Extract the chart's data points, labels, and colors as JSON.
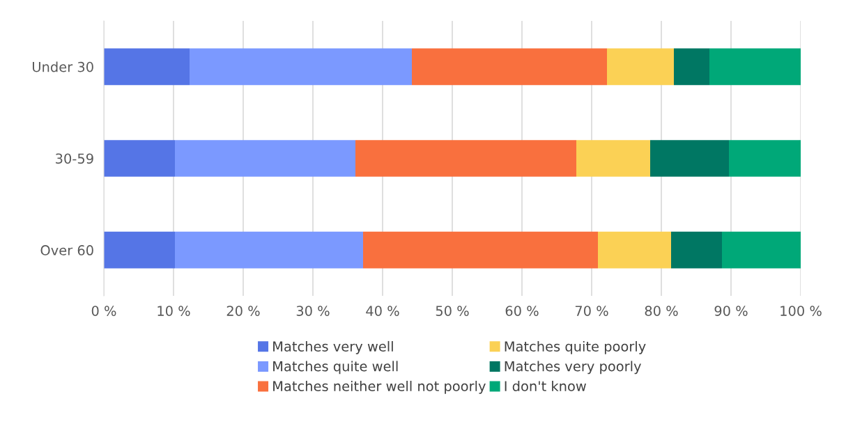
{
  "chart_data": {
    "type": "bar",
    "orientation": "horizontal",
    "stacked": true,
    "categories": [
      "Under 30",
      "30-59",
      "Over 60"
    ],
    "series": [
      {
        "name": "Matches very well",
        "color": "#5575e6",
        "values": [
          12.3,
          10.2,
          10.2
        ]
      },
      {
        "name": "Matches quite well",
        "color": "#7b99ff",
        "values": [
          31.9,
          25.9,
          27.0
        ]
      },
      {
        "name": "Matches neither well not poorly",
        "color": "#f9703e",
        "values": [
          28.0,
          31.7,
          33.7
        ]
      },
      {
        "name": "Matches quite poorly",
        "color": "#fbd155",
        "values": [
          9.6,
          10.6,
          10.5
        ]
      },
      {
        "name": "Matches very poorly",
        "color": "#007763",
        "values": [
          5.1,
          11.3,
          7.3
        ]
      },
      {
        "name": "I don't know",
        "color": "#00a878",
        "values": [
          13.1,
          10.3,
          11.3
        ]
      }
    ],
    "xlim": [
      0,
      100
    ],
    "xticks": [
      {
        "value": 0,
        "label": "0 %"
      },
      {
        "value": 10,
        "label": "10 %"
      },
      {
        "value": 20,
        "label": "20 %"
      },
      {
        "value": 30,
        "label": "30 %"
      },
      {
        "value": 40,
        "label": "40 %"
      },
      {
        "value": 50,
        "label": "50 %"
      },
      {
        "value": 60,
        "label": "60 %"
      },
      {
        "value": 70,
        "label": "70 %"
      },
      {
        "value": 80,
        "label": "80 %"
      },
      {
        "value": 90,
        "label": "90 %"
      },
      {
        "value": 100,
        "label": "100 %"
      }
    ],
    "grid": "x",
    "legend": "bottom"
  }
}
